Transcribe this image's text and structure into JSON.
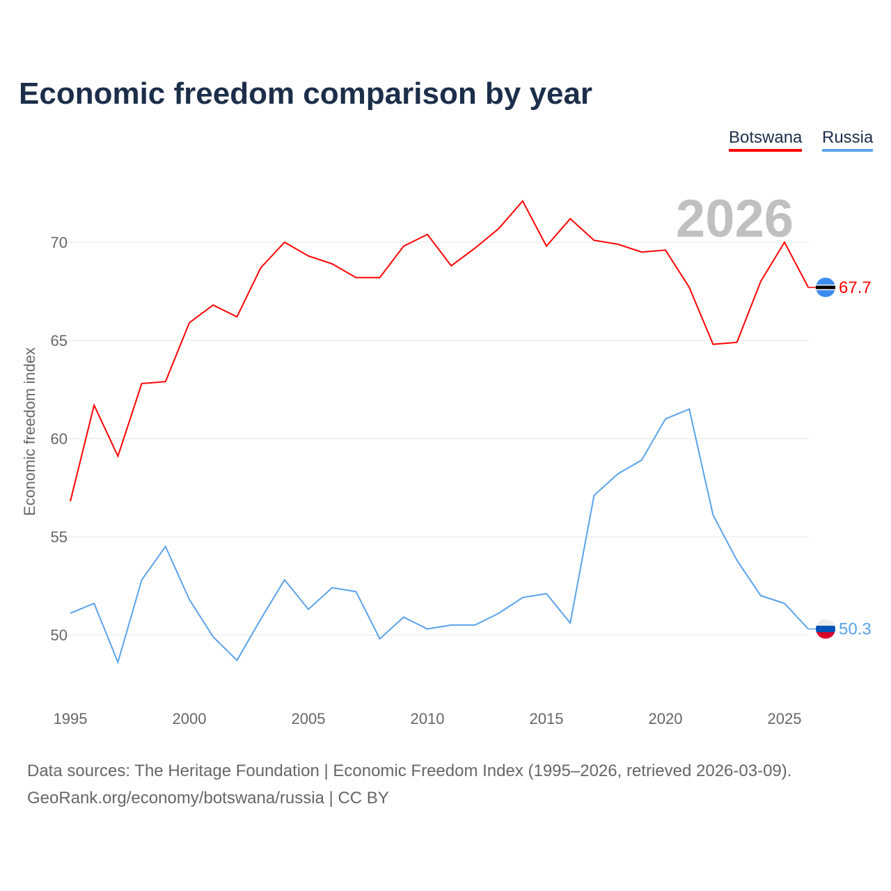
{
  "title": "Economic freedom comparison by year",
  "footer": {
    "line1": "Data sources: The Heritage Foundation | Economic Freedom Index (1995–2026, retrieved 2026-03-09).",
    "line2": "GeoRank.org/economy/botswana/russia | CC BY"
  },
  "chart_data": {
    "type": "line",
    "title": "Economic freedom comparison by year",
    "xlabel": "",
    "ylabel": "Economic freedom index",
    "year_label": "2026",
    "x": [
      1995,
      1996,
      1997,
      1998,
      1999,
      2000,
      2001,
      2002,
      2003,
      2004,
      2005,
      2006,
      2007,
      2008,
      2009,
      2010,
      2011,
      2012,
      2013,
      2014,
      2015,
      2016,
      2017,
      2018,
      2019,
      2020,
      2021,
      2022,
      2023,
      2024,
      2025,
      2026
    ],
    "xticks": [
      "1995",
      "2000",
      "2005",
      "2010",
      "2015",
      "2020",
      "2025"
    ],
    "yticks": [
      "50",
      "55",
      "60",
      "65",
      "70"
    ],
    "xlim": [
      1995,
      2026
    ],
    "ylim": [
      46.5,
      73.5
    ],
    "grid": true,
    "legend_position": "top-right",
    "series": [
      {
        "name": "Botswana",
        "color": "#ff0000",
        "end_label": "67.7",
        "flag": "botswana-flag",
        "values": [
          56.8,
          61.7,
          59.1,
          62.8,
          62.9,
          65.9,
          66.8,
          66.2,
          68.7,
          70.0,
          69.3,
          68.9,
          68.2,
          68.2,
          69.8,
          70.4,
          68.8,
          69.7,
          70.7,
          72.1,
          69.8,
          71.2,
          70.1,
          69.9,
          69.5,
          69.6,
          67.7,
          64.8,
          64.9,
          68.0,
          70.0,
          67.7
        ]
      },
      {
        "name": "Russia",
        "color": "#5aa2ea",
        "end_label": "50.3",
        "flag": "russia-flag",
        "values": [
          51.1,
          51.6,
          48.6,
          52.8,
          54.5,
          51.8,
          49.9,
          48.7,
          50.8,
          52.8,
          51.3,
          52.4,
          52.2,
          49.8,
          50.9,
          50.3,
          50.5,
          50.5,
          51.1,
          51.9,
          52.1,
          50.6,
          57.1,
          58.2,
          58.9,
          61.0,
          61.5,
          56.1,
          53.8,
          52.0,
          51.6,
          50.3
        ]
      }
    ]
  }
}
